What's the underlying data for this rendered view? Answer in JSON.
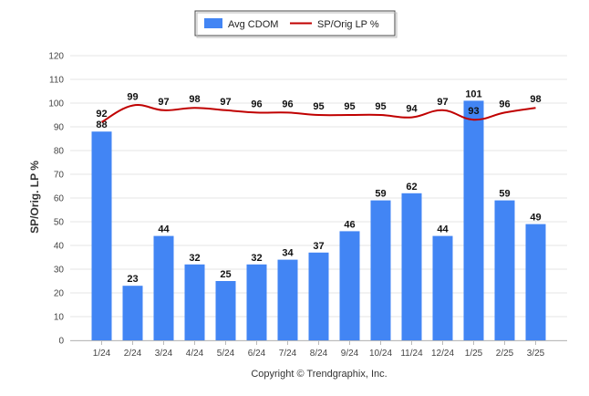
{
  "chart_data": {
    "type": "bar",
    "categories": [
      "1/24",
      "2/24",
      "3/24",
      "4/24",
      "5/24",
      "6/24",
      "7/24",
      "8/24",
      "9/24",
      "10/24",
      "11/24",
      "12/24",
      "1/25",
      "2/25",
      "3/25"
    ],
    "series": [
      {
        "name": "Avg CDOM",
        "type": "bar",
        "color": "#4285F4",
        "values": [
          88,
          23,
          44,
          32,
          25,
          32,
          34,
          37,
          46,
          59,
          62,
          44,
          101,
          59,
          49
        ]
      },
      {
        "name": "SP/Orig LP %",
        "type": "line",
        "color": "#C00000",
        "values": [
          92,
          99,
          97,
          98,
          97,
          96,
          96,
          95,
          95,
          95,
          94,
          97,
          93,
          96,
          98
        ]
      }
    ],
    "ylabel": "SP/Orig. LP %",
    "ylim": [
      0,
      120
    ],
    "yticks": [
      0,
      10,
      20,
      30,
      40,
      50,
      60,
      70,
      80,
      90,
      100,
      110,
      120
    ],
    "grid": true,
    "legend_position": "top-center",
    "footer": "Copyright © Trendgraphix, Inc."
  }
}
